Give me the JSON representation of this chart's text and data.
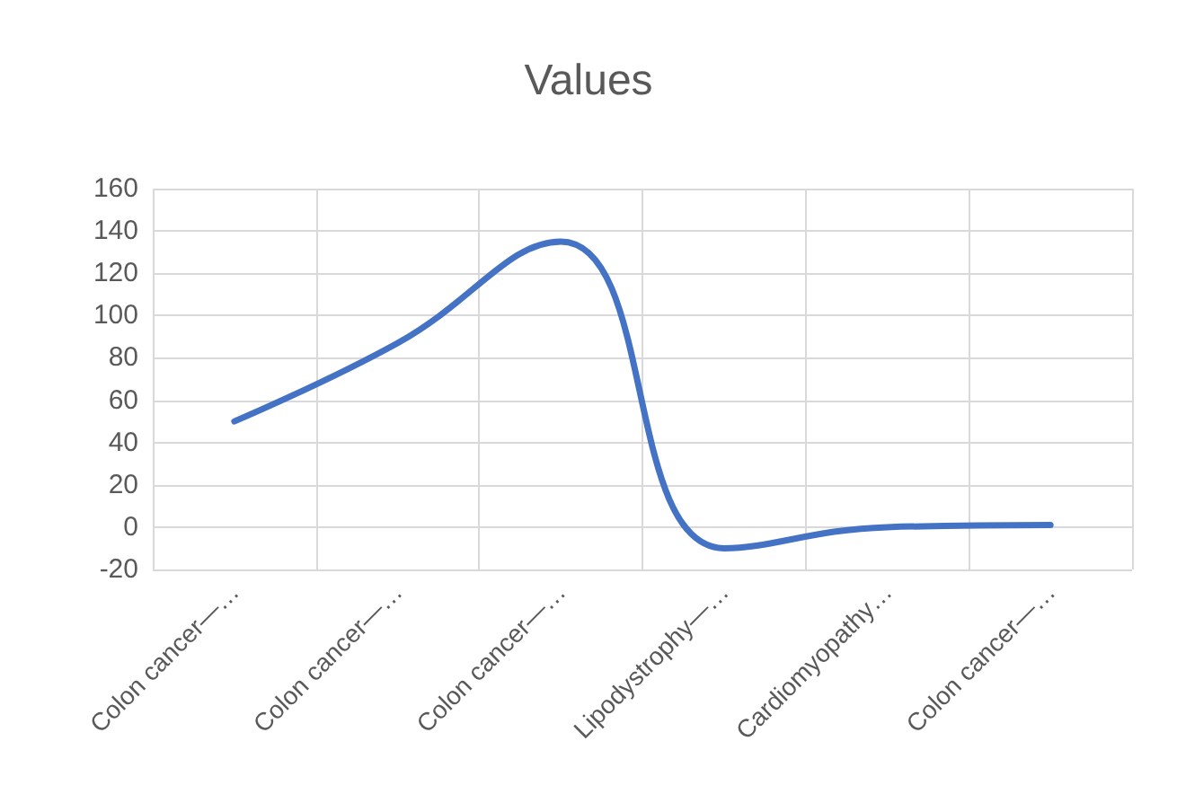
{
  "chart_data": {
    "type": "line",
    "title": "Values",
    "categories": [
      "Colon cancer—…",
      "Colon cancer—…",
      "Colon cancer—…",
      "Lipodystrophy—…",
      "Cardiomyopathy…",
      "Colon cancer—…"
    ],
    "series": [
      {
        "color": "#4472c4",
        "values": [
          50,
          87,
          135,
          -10,
          0,
          1
        ]
      }
    ],
    "ylim": [
      -20,
      160
    ],
    "yticks": [
      -20,
      0,
      20,
      40,
      60,
      80,
      100,
      120,
      140,
      160
    ],
    "grid": true,
    "marker": "none",
    "line_style": "solid"
  }
}
